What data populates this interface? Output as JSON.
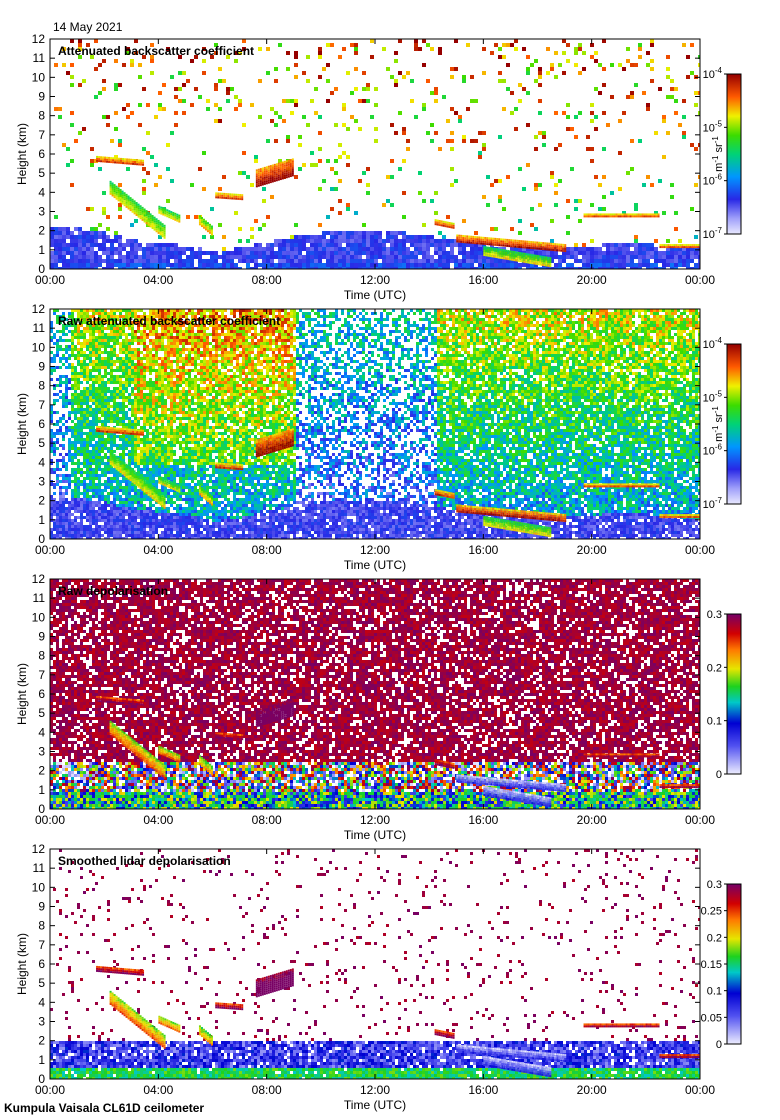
{
  "page": {
    "date": "14 May 2021",
    "footer": "Kumpula Vaisala CL61D ceilometer"
  },
  "chart_data": [
    {
      "type": "heatmap",
      "title": "Attenuated backscatter coefficient",
      "xlabel": "Time (UTC)",
      "ylabel": "Height (km)",
      "xticks": [
        "00:00",
        "04:00",
        "08:00",
        "12:00",
        "16:00",
        "20:00",
        "00:00"
      ],
      "yticks": [
        "0",
        "1",
        "2",
        "3",
        "4",
        "5",
        "6",
        "7",
        "8",
        "9",
        "10",
        "11",
        "12"
      ],
      "ylim": [
        0,
        12
      ],
      "colorbar": {
        "scale": "log",
        "range": [
          1e-07,
          0.0001
        ],
        "ticks": [
          {
            "base": "10",
            "exp": "-7"
          },
          {
            "base": "10",
            "exp": "-6"
          },
          {
            "base": "10",
            "exp": "-5"
          },
          {
            "base": "10",
            "exp": "-4"
          }
        ],
        "unit": {
          "m": "m",
          "m_exp": "-1",
          "sr": " sr",
          "sr_exp": "-1"
        }
      },
      "features": {
        "noise_mask": "clean",
        "boundary_layer_top_km": [
          2.3,
          2.2,
          2.0,
          1.6,
          1.5,
          1.3,
          1.0,
          1.2,
          1.5,
          1.8,
          2.0,
          2.0,
          2.1,
          2.0,
          1.8,
          1.6,
          1.4,
          1.3,
          1.2,
          1.2,
          1.3,
          1.5,
          1.4,
          1.2,
          1.2
        ]
      }
    },
    {
      "type": "heatmap",
      "title": "Raw attenuated backscatter coefficient",
      "xlabel": "Time (UTC)",
      "ylabel": "Height (km)",
      "xticks": [
        "00:00",
        "04:00",
        "08:00",
        "12:00",
        "16:00",
        "20:00",
        "00:00"
      ],
      "yticks": [
        "0",
        "1",
        "2",
        "3",
        "4",
        "5",
        "6",
        "7",
        "8",
        "9",
        "10",
        "11",
        "12"
      ],
      "ylim": [
        0,
        12
      ],
      "colorbar": {
        "scale": "log",
        "range": [
          1e-07,
          0.0001
        ],
        "ticks": [
          {
            "base": "10",
            "exp": "-7"
          },
          {
            "base": "10",
            "exp": "-6"
          },
          {
            "base": "10",
            "exp": "-5"
          },
          {
            "base": "10",
            "exp": "-4"
          }
        ],
        "unit": {
          "m": "m",
          "m_exp": "-1",
          "sr": " sr",
          "sr_exp": "-1"
        }
      },
      "features": {
        "noise_mask": "raw",
        "boundary_layer_top_km": [
          2.3,
          2.2,
          2.0,
          1.6,
          1.5,
          1.3,
          1.0,
          1.2,
          1.5,
          1.8,
          2.0,
          2.0,
          2.1,
          2.0,
          1.8,
          1.6,
          1.4,
          1.3,
          1.2,
          1.2,
          1.3,
          1.5,
          1.4,
          1.2,
          1.2
        ]
      }
    },
    {
      "type": "heatmap",
      "title": "Raw depolarisation",
      "xlabel": "Time (UTC)",
      "ylabel": "Height (km)",
      "xticks": [
        "00:00",
        "04:00",
        "08:00",
        "12:00",
        "16:00",
        "20:00",
        "00:00"
      ],
      "yticks": [
        "0",
        "1",
        "2",
        "3",
        "4",
        "5",
        "6",
        "7",
        "8",
        "9",
        "10",
        "11",
        "12"
      ],
      "ylim": [
        0,
        12
      ],
      "colorbar": {
        "scale": "linear",
        "range": [
          0,
          0.3
        ],
        "ticks": [
          {
            "base": "0"
          },
          {
            "base": "0.1"
          },
          {
            "base": "0.2"
          },
          {
            "base": "0.3"
          }
        ]
      },
      "features": {
        "noise_mask": "depol_raw"
      }
    },
    {
      "type": "heatmap",
      "title": "Smoothed lidar depolarisation",
      "xlabel": "Time (UTC)",
      "ylabel": "Height (km)",
      "xticks": [
        "00:00",
        "04:00",
        "08:00",
        "12:00",
        "16:00",
        "20:00",
        "00:00"
      ],
      "yticks": [
        "0",
        "1",
        "2",
        "3",
        "4",
        "5",
        "6",
        "7",
        "8",
        "9",
        "10",
        "11",
        "12"
      ],
      "ylim": [
        0,
        12
      ],
      "colorbar": {
        "scale": "linear",
        "range": [
          0,
          0.3
        ],
        "ticks": [
          {
            "base": "0"
          },
          {
            "base": "0.05"
          },
          {
            "base": "0.1"
          },
          {
            "base": "0.15"
          },
          {
            "base": "0.2"
          },
          {
            "base": "0.25"
          },
          {
            "base": "0.3"
          }
        ]
      },
      "features": {
        "noise_mask": "depol_smooth"
      }
    }
  ]
}
